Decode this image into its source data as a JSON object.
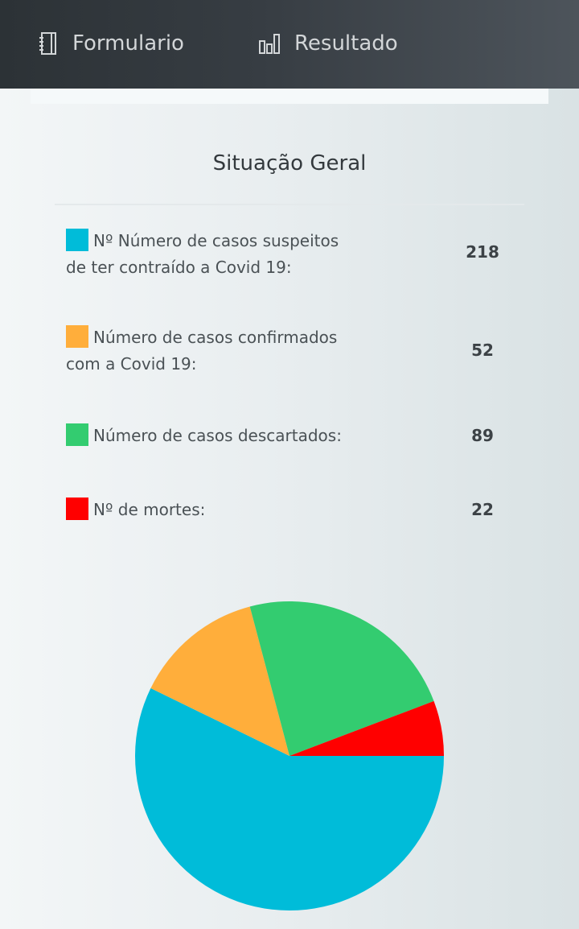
{
  "nav": {
    "items": [
      {
        "label": "Formulario",
        "icon": "notebook-icon"
      },
      {
        "label": "Resultado",
        "icon": "bar-chart-icon"
      }
    ]
  },
  "card": {
    "title": "Situação Geral"
  },
  "legend": [
    {
      "label": "Nº Número de casos suspeitos de ter contraído a Covid 19:",
      "value": "218",
      "color": "#00bcd9"
    },
    {
      "label": "Número de casos confirmados com a Covid 19:",
      "value": "52",
      "color": "#ffae3b"
    },
    {
      "label": "Número de casos descartados:",
      "value": "89",
      "color": "#33cc70"
    },
    {
      "label": "Nº de mortes:",
      "value": "22",
      "color": "#ff0000"
    }
  ],
  "chart_data": {
    "type": "pie",
    "title": "Situação Geral",
    "categories": [
      "Nº Número de casos suspeitos de ter contraído a Covid 19",
      "Número de casos confirmados com a Covid 19",
      "Número de casos descartados",
      "Nº de mortes"
    ],
    "values": [
      218,
      52,
      89,
      22
    ],
    "colors": [
      "#00bcd9",
      "#ffae3b",
      "#33cc70",
      "#ff0000"
    ],
    "start_angle_deg": 0,
    "direction": "clockwise",
    "legend_position": "top"
  }
}
